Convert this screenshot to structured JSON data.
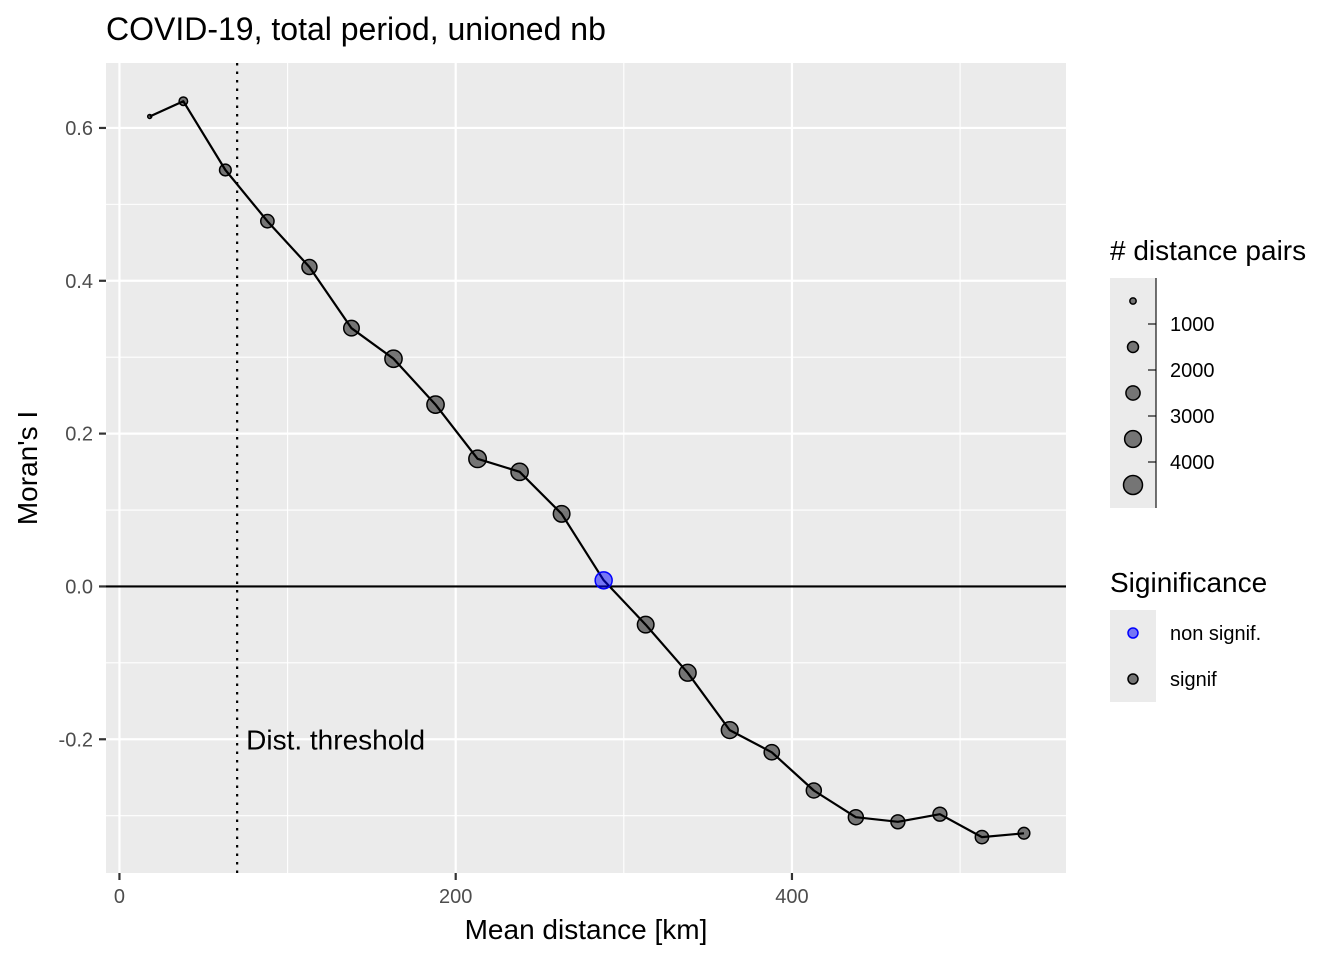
{
  "chart_data": {
    "type": "scatter",
    "title": "COVID-19, total period, unioned nb",
    "xlabel": "Mean distance [km]",
    "ylabel": "Moran's I",
    "xlim": [
      -8,
      563
    ],
    "ylim": [
      -0.375,
      0.685
    ],
    "x_ticks": [
      0,
      200,
      400
    ],
    "x_tick_labels": [
      "0",
      "200",
      "400"
    ],
    "y_ticks": [
      -0.2,
      0.0,
      0.2,
      0.4,
      0.6
    ],
    "y_tick_labels": [
      "-0.2",
      "0.0",
      "0.2",
      "0.4",
      "0.6"
    ],
    "grid": true,
    "hline_y": 0,
    "vline_x": 70,
    "vline_label": "Dist. threshold",
    "points": [
      {
        "x": 18,
        "y": 0.615,
        "pairs": 200,
        "signif": "signif"
      },
      {
        "x": 38,
        "y": 0.635,
        "pairs": 900,
        "signif": "signif"
      },
      {
        "x": 63,
        "y": 0.545,
        "pairs": 1700,
        "signif": "signif"
      },
      {
        "x": 88,
        "y": 0.478,
        "pairs": 2200,
        "signif": "signif"
      },
      {
        "x": 113,
        "y": 0.418,
        "pairs": 2800,
        "signif": "signif"
      },
      {
        "x": 138,
        "y": 0.338,
        "pairs": 3000,
        "signif": "signif"
      },
      {
        "x": 163,
        "y": 0.298,
        "pairs": 3700,
        "signif": "signif"
      },
      {
        "x": 188,
        "y": 0.238,
        "pairs": 3700,
        "signif": "signif"
      },
      {
        "x": 213,
        "y": 0.167,
        "pairs": 3800,
        "signif": "signif"
      },
      {
        "x": 238,
        "y": 0.15,
        "pairs": 3700,
        "signif": "signif"
      },
      {
        "x": 263,
        "y": 0.095,
        "pairs": 3400,
        "signif": "signif"
      },
      {
        "x": 288,
        "y": 0.008,
        "pairs": 3600,
        "signif": "non signif."
      },
      {
        "x": 313,
        "y": -0.05,
        "pairs": 3400,
        "signif": "signif"
      },
      {
        "x": 338,
        "y": -0.113,
        "pairs": 3500,
        "signif": "signif"
      },
      {
        "x": 363,
        "y": -0.188,
        "pairs": 3500,
        "signif": "signif"
      },
      {
        "x": 388,
        "y": -0.217,
        "pairs": 2900,
        "signif": "signif"
      },
      {
        "x": 413,
        "y": -0.267,
        "pairs": 2800,
        "signif": "signif"
      },
      {
        "x": 438,
        "y": -0.302,
        "pairs": 2800,
        "signif": "signif"
      },
      {
        "x": 463,
        "y": -0.308,
        "pairs": 2400,
        "signif": "signif"
      },
      {
        "x": 488,
        "y": -0.298,
        "pairs": 2400,
        "signif": "signif"
      },
      {
        "x": 513,
        "y": -0.328,
        "pairs": 2200,
        "signif": "signif"
      },
      {
        "x": 538,
        "y": -0.323,
        "pairs": 1700,
        "signif": "signif"
      }
    ],
    "legend_size": {
      "title": "# distance pairs",
      "breaks": [
        1000,
        2000,
        3000,
        4000
      ],
      "labels": [
        "1000",
        "2000",
        "3000",
        "4000"
      ],
      "key_values": [
        500,
        1500,
        2500,
        3500,
        4500
      ]
    },
    "legend_color": {
      "title": "Siginificance",
      "entries": [
        {
          "label": "non signif.",
          "color": "#0000ff"
        },
        {
          "label": "signif",
          "color": "#000000"
        }
      ]
    },
    "colors": {
      "panel_bg": "#ebebeb",
      "grid": "#ffffff",
      "signif": "#000000",
      "non_signif": "#0000ff",
      "line": "#000000"
    }
  }
}
